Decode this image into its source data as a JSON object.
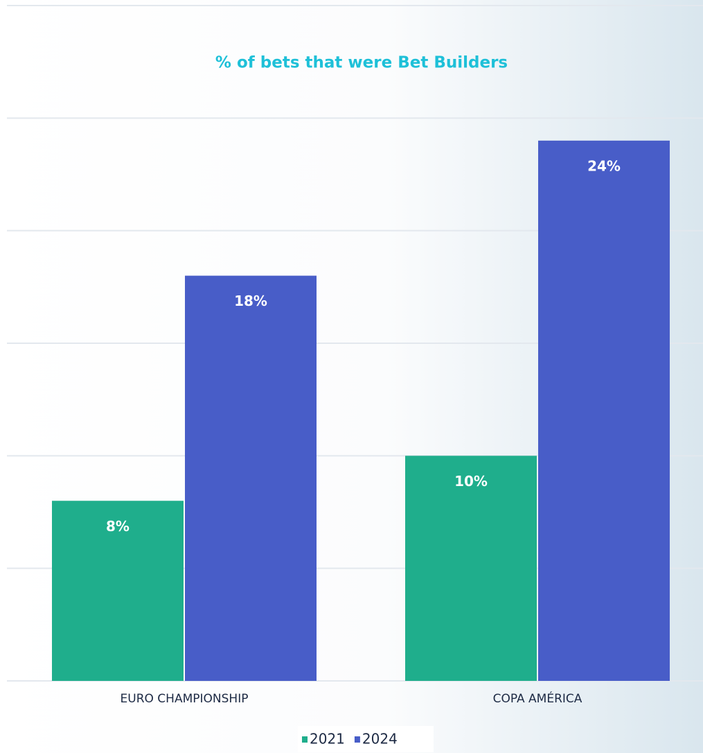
{
  "chart_data": {
    "type": "bar",
    "title": "% of bets that were Bet Builders",
    "categories": [
      "EURO CHAMPIONSHIP",
      "COPA AMÉRICA"
    ],
    "series": [
      {
        "name": "2021",
        "color": "#1fae8c",
        "values": [
          8,
          10
        ],
        "value_labels": [
          "8%",
          "10%"
        ]
      },
      {
        "name": "2024",
        "color": "#485dc8",
        "values": [
          18,
          24
        ],
        "value_labels": [
          "18%",
          "24%"
        ]
      }
    ],
    "ylim": [
      0,
      30
    ],
    "yticks": [
      0,
      5,
      10,
      15,
      20,
      25,
      30
    ],
    "grid": true
  }
}
